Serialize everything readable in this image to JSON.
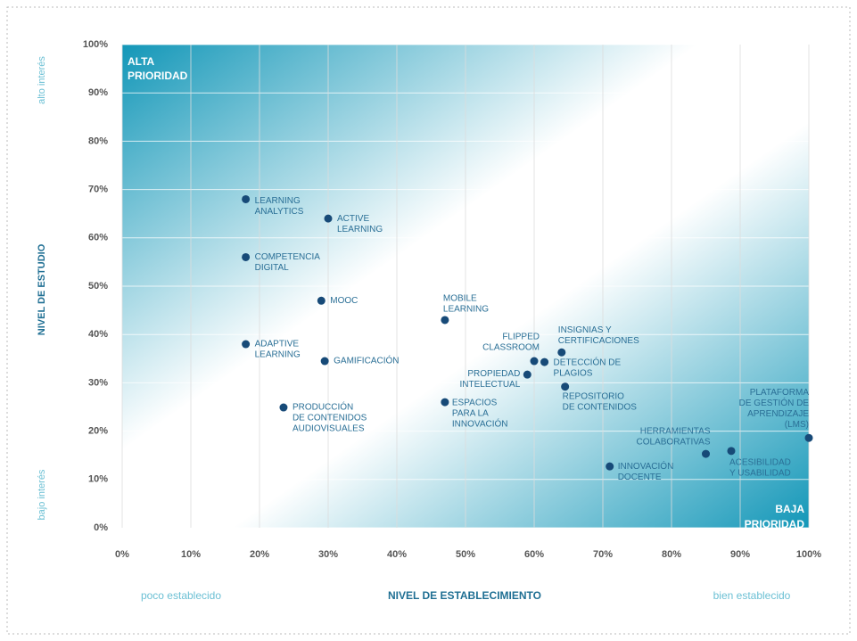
{
  "chart_data": {
    "type": "scatter",
    "corner_labels": {
      "top_left": [
        "ALTA",
        "PRIORIDAD"
      ],
      "bottom_right": [
        "BAJA",
        "PRIORIDAD"
      ]
    },
    "y_label": "NIVEL DE ESTUDIO",
    "y_high": "alto interés",
    "y_low": "bajo interés",
    "x_label": "NIVEL DE ESTABLECIMIENTO",
    "x_low": "poco establecido",
    "x_high": "bien establecido",
    "color": "#174a78",
    "label_color": "#2a6f96",
    "x": [
      18,
      30,
      18,
      29,
      47,
      18,
      29.5,
      60,
      64,
      61.5,
      59,
      64.5,
      23.5,
      47,
      100,
      85,
      88.7,
      71
    ],
    "values": [
      68,
      64,
      56,
      47,
      43,
      38,
      34.5,
      34.5,
      36.3,
      34.3,
      31.7,
      29.2,
      24.9,
      26,
      18.6,
      15.3,
      15.9,
      12.7
    ],
    "point_labels": [
      [
        "LEARNING",
        "ANALYTICS"
      ],
      [
        "ACTIVE",
        "LEARNING"
      ],
      [
        "COMPETENCIA",
        "DIGITAL"
      ],
      [
        "MOOC"
      ],
      [
        "MOBILE",
        "LEARNING"
      ],
      [
        "ADAPTIVE",
        "LEARNING"
      ],
      [
        "GAMIFICACIÓN"
      ],
      [
        "FLIPPED",
        "CLASSROOM"
      ],
      [
        "INSIGNIAS Y",
        "CERTIFICACIONES"
      ],
      [
        "DETECCIÓN DE",
        "PLAGIOS"
      ],
      [
        "PROPIEDAD",
        "INTELECTUAL"
      ],
      [
        "REPOSITORIO",
        "DE CONTENIDOS"
      ],
      [
        "PRODUCCIÓN",
        "DE CONTENIDOS",
        "AUDIOVISUALES"
      ],
      [
        "ESPACIOS",
        "PARA LA",
        "INNOVACIÓN"
      ],
      [
        "PLATAFORMA",
        "DE GESTIÓN DE",
        "APRENDIZAJE",
        "(LMS)"
      ],
      [
        "HERRAMIENTAS",
        "COLABORATIVAS"
      ],
      [
        "ACESIBILIDAD",
        "Y USABILIDAD"
      ],
      [
        "INNOVACIÓN",
        "DOCENTE"
      ]
    ],
    "xlim": [
      0,
      100
    ],
    "ylim": [
      0,
      100
    ],
    "xticks": [
      {
        "value": 0,
        "label": "0%"
      },
      {
        "value": 10,
        "label": "10%"
      },
      {
        "value": 20,
        "label": "20%"
      },
      {
        "value": 30,
        "label": "30%"
      },
      {
        "value": 40,
        "label": "40%"
      },
      {
        "value": 50,
        "label": "50%"
      },
      {
        "value": 60,
        "label": "60%"
      },
      {
        "value": 70,
        "label": "70%"
      },
      {
        "value": 80,
        "label": "80%"
      },
      {
        "value": 90,
        "label": "90%"
      },
      {
        "value": 100,
        "label": "100%"
      }
    ],
    "yticks": [
      {
        "value": 0,
        "label": "0%"
      },
      {
        "value": 10,
        "label": "10%"
      },
      {
        "value": 20,
        "label": "20%"
      },
      {
        "value": 30,
        "label": "30%"
      },
      {
        "value": 40,
        "label": "40%"
      },
      {
        "value": 50,
        "label": "50%"
      },
      {
        "value": 60,
        "label": "60%"
      },
      {
        "value": 70,
        "label": "70%"
      },
      {
        "value": 80,
        "label": "80%"
      },
      {
        "value": 90,
        "label": "90%"
      },
      {
        "value": 100,
        "label": "100%"
      }
    ],
    "grid": true
  }
}
